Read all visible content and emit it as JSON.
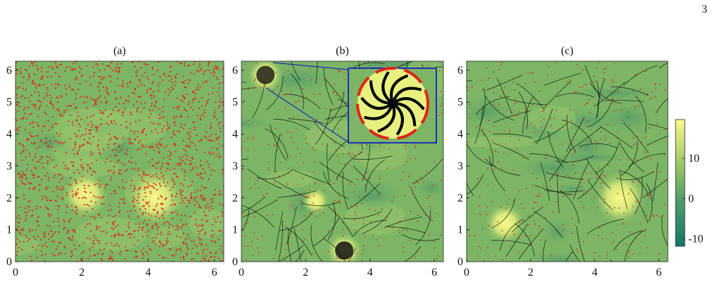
{
  "page_number": "3",
  "panels": [
    {
      "label": "(a)",
      "xlim": [
        0,
        6.283
      ],
      "ylim": [
        0,
        6.283
      ],
      "xticks": [
        0,
        2,
        4,
        6
      ],
      "yticks": [
        0,
        1,
        2,
        3,
        4,
        5,
        6
      ]
    },
    {
      "label": "(b)",
      "xlim": [
        0,
        6.283
      ],
      "ylim": [
        0,
        6.283
      ],
      "xticks": [
        0,
        2,
        4,
        6
      ],
      "yticks": [
        0,
        1,
        2,
        3,
        4,
        5,
        6
      ]
    },
    {
      "label": "(c)",
      "xlim": [
        0,
        6.283
      ],
      "ylim": [
        0,
        6.283
      ],
      "xticks": [
        0,
        2,
        4,
        6
      ],
      "yticks": [
        0,
        1,
        2,
        3,
        4,
        5,
        6
      ]
    }
  ],
  "colorbar": {
    "lim": [
      -11.8,
      19.6
    ],
    "ticks": [
      -10,
      0,
      10
    ]
  }
}
